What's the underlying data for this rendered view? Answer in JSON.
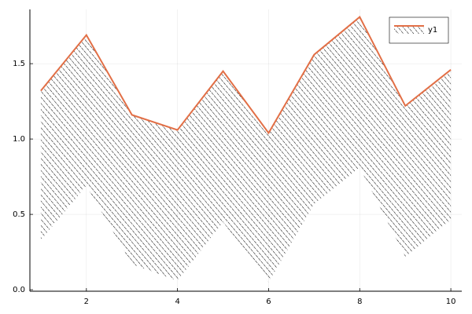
{
  "chart_data": {
    "type": "line",
    "x": [
      1,
      2,
      3,
      4,
      5,
      6,
      7,
      8,
      9,
      10
    ],
    "series": [
      {
        "name": "y1",
        "color": "#e26f46",
        "values": [
          1.32,
          1.69,
          1.16,
          1.06,
          1.45,
          1.04,
          1.56,
          1.81,
          1.22,
          1.46
        ],
        "fillrange": [
          0.33,
          0.69,
          0.17,
          0.06,
          0.45,
          0.05,
          0.57,
          0.81,
          0.22,
          0.46
        ]
      }
    ],
    "xlim": [
      0.76,
      10.24
    ],
    "xticks": [
      2,
      4,
      6,
      8,
      10
    ],
    "ylim": [
      -0.01,
      1.86
    ],
    "yticks": [
      {
        "value": 0,
        "label": "0.0"
      },
      0.5,
      {
        "value": 1,
        "label": "1.0"
      },
      1.5
    ],
    "grid": true,
    "legend": "top-right",
    "fill_hatch": "/"
  }
}
